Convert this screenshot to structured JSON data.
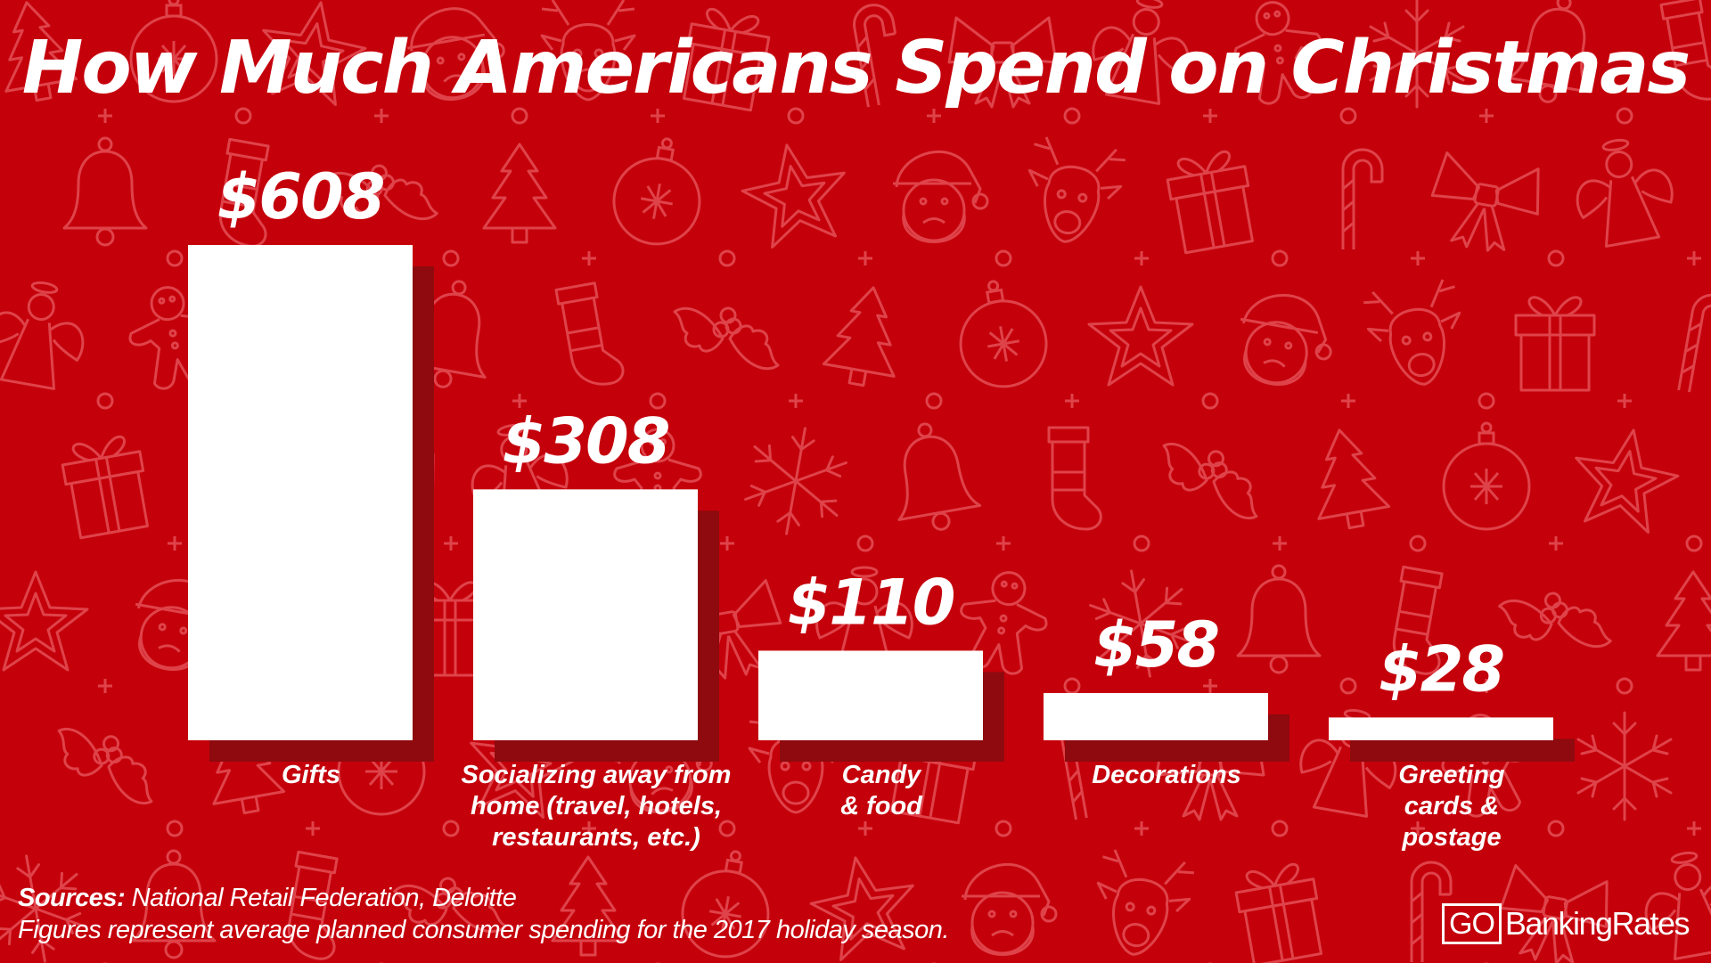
{
  "chart_data": {
    "type": "bar",
    "title": "How Much Americans Spend on Christmas",
    "categories": [
      [
        "Gifts"
      ],
      [
        "Socializing away from",
        "home (travel, hotels,",
        "restaurants, etc.)"
      ],
      [
        "Candy",
        "& food"
      ],
      [
        "Decorations"
      ],
      [
        "Greeting",
        "cards &",
        "postage"
      ]
    ],
    "values": [
      608,
      308,
      110,
      58,
      28
    ],
    "value_labels": [
      "$608",
      "$308",
      "$110",
      "$58",
      "$28"
    ],
    "ylim": [
      0,
      608
    ],
    "grid": false,
    "legend": "none",
    "colors": {
      "background": "#c4000b",
      "bar": "#ffffff",
      "bar_shadow": "#8e0a0e",
      "text": "#ffffff",
      "pattern": "#e05a5f"
    }
  },
  "footer": {
    "sources_label": "Sources:",
    "sources_text": " National Retail Federation, Deloitte",
    "note": "Figures represent average planned consumer spending for the 2017 holiday season."
  },
  "logo": {
    "prefix": "GO",
    "name": "BankingRates"
  },
  "pattern_icons": [
    "christmas-tree-icon",
    "gift-icon",
    "snowflake-icon",
    "ornament-icon",
    "candy-cane-icon",
    "bell-icon",
    "star-icon",
    "bow-icon",
    "stocking-icon",
    "santa-icon",
    "angel-icon",
    "holly-icon",
    "reindeer-icon",
    "gingerbread-icon"
  ]
}
